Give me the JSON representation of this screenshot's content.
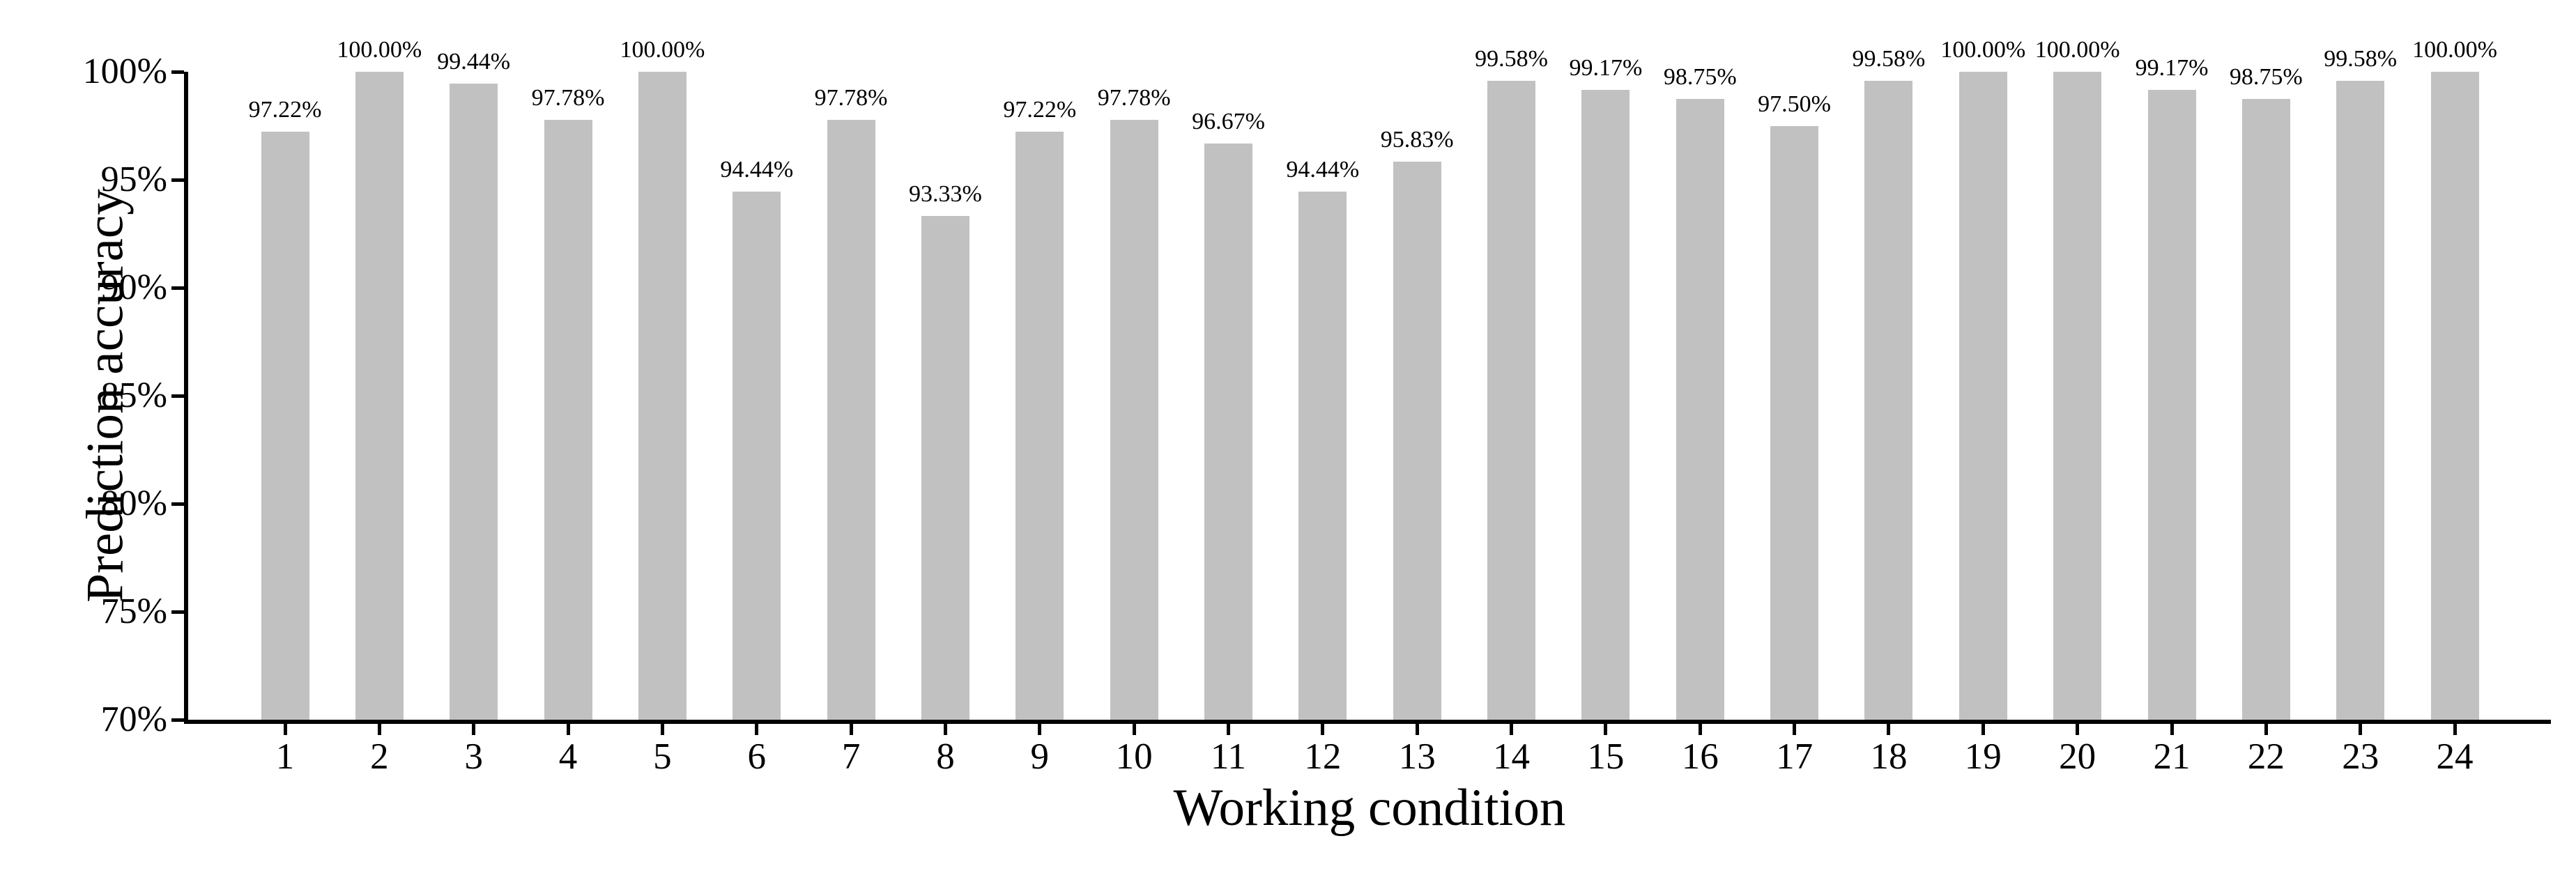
{
  "chart_data": {
    "type": "bar",
    "title": "",
    "xlabel": "Working condition",
    "ylabel": "Prediction accuracy",
    "categories": [
      "1",
      "2",
      "3",
      "4",
      "5",
      "6",
      "7",
      "8",
      "9",
      "10",
      "11",
      "12",
      "13",
      "14",
      "15",
      "16",
      "17",
      "18",
      "19",
      "20",
      "21",
      "22",
      "23",
      "24"
    ],
    "values": [
      97.22,
      100.0,
      99.44,
      97.78,
      100.0,
      94.44,
      97.78,
      93.33,
      97.22,
      97.78,
      96.67,
      94.44,
      95.83,
      99.58,
      99.17,
      98.75,
      97.5,
      99.58,
      100.0,
      100.0,
      99.17,
      98.75,
      99.58,
      100.0
    ],
    "bar_labels": [
      "97.22%",
      "100.00%",
      "99.44%",
      "97.78%",
      "100.00%",
      "94.44%",
      "97.78%",
      "93.33%",
      "97.22%",
      "97.78%",
      "96.67%",
      "94.44%",
      "95.83%",
      "99.58%",
      "99.17%",
      "98.75%",
      "97.50%",
      "99.58%",
      "100.00%",
      "100.00%",
      "99.17%",
      "98.75%",
      "99.58%",
      "100.00%"
    ],
    "ylim": [
      70,
      100
    ],
    "yticks": [
      {
        "value": 100,
        "label": "100%"
      },
      {
        "value": 95,
        "label": "95%"
      },
      {
        "value": 90,
        "label": "90%"
      },
      {
        "value": 85,
        "label": "85%"
      },
      {
        "value": 80,
        "label": "80%"
      },
      {
        "value": 75,
        "label": "75%"
      },
      {
        "value": 70,
        "label": "70%"
      }
    ],
    "grid": false,
    "legend": null,
    "bar_color": "#c1c1c1",
    "axis_color": "#000000",
    "background_color": "#ffffff"
  }
}
